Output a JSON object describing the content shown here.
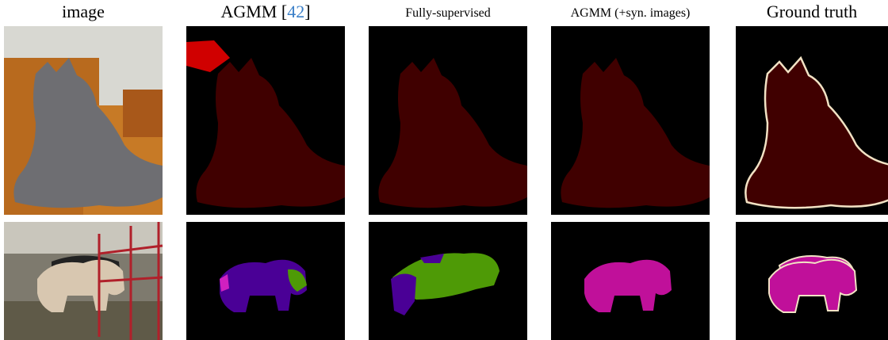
{
  "headers": [
    {
      "text": "image"
    },
    {
      "before": "AGMM [",
      "cite": "42",
      "after": "]"
    },
    {
      "text": "Fully-supervised"
    },
    {
      "text": "AGMM (+syn. images)"
    },
    {
      "text": "Ground truth"
    }
  ]
}
